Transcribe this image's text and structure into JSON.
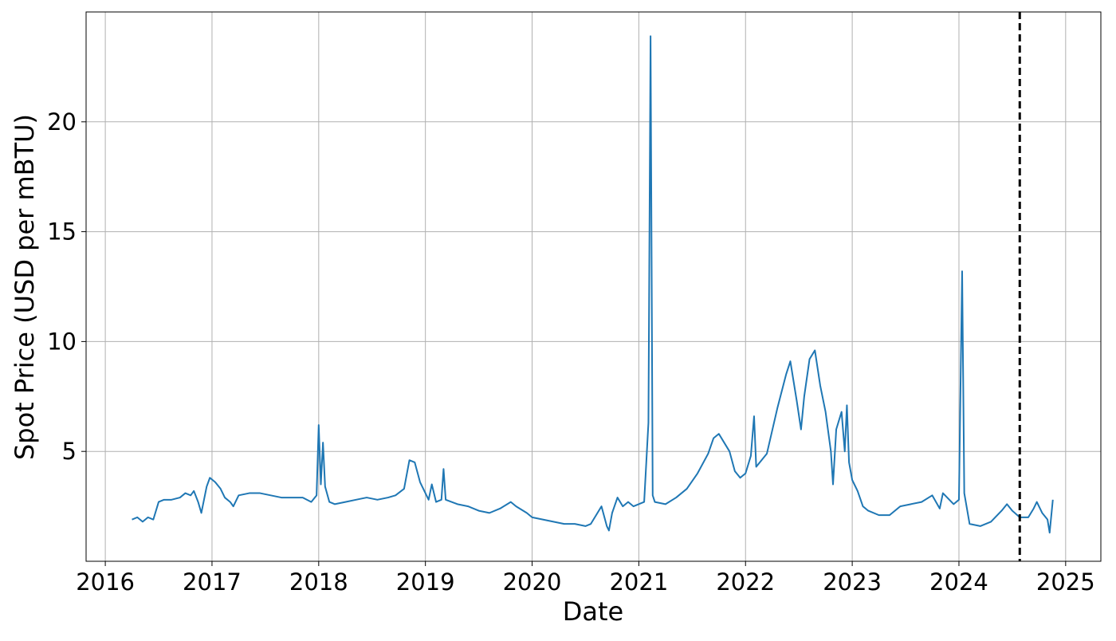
{
  "chart_data": {
    "type": "line",
    "x_label": "Date",
    "y_label": "Spot Price (USD per mBTU)",
    "xlim": [
      2015.82,
      2025.33
    ],
    "xticks": [
      2016,
      2017,
      2018,
      2019,
      2020,
      2021,
      2022,
      2023,
      2024,
      2025
    ],
    "ylim": [
      0,
      25
    ],
    "yticks": [
      5,
      10,
      15,
      20
    ],
    "grid": true,
    "vline": {
      "x": 2024.57,
      "color": "#000000",
      "style": "dashed"
    },
    "series": [
      {
        "color": "#1f77b4",
        "x": [
          2016.25,
          2016.3,
          2016.35,
          2016.4,
          2016.45,
          2016.5,
          2016.55,
          2016.62,
          2016.7,
          2016.75,
          2016.8,
          2016.83,
          2016.87,
          2016.9,
          2016.95,
          2016.98,
          2017.03,
          2017.08,
          2017.12,
          2017.17,
          2017.2,
          2017.25,
          2017.35,
          2017.45,
          2017.55,
          2017.65,
          2017.75,
          2017.85,
          2017.93,
          2017.98,
          2018.0,
          2018.02,
          2018.04,
          2018.06,
          2018.1,
          2018.15,
          2018.25,
          2018.35,
          2018.45,
          2018.55,
          2018.65,
          2018.72,
          2018.8,
          2018.85,
          2018.9,
          2018.95,
          2019.0,
          2019.03,
          2019.06,
          2019.1,
          2019.15,
          2019.17,
          2019.19,
          2019.3,
          2019.4,
          2019.5,
          2019.6,
          2019.7,
          2019.8,
          2019.85,
          2019.95,
          2020.0,
          2020.1,
          2020.2,
          2020.3,
          2020.4,
          2020.5,
          2020.55,
          2020.6,
          2020.65,
          2020.7,
          2020.72,
          2020.75,
          2020.8,
          2020.85,
          2020.9,
          2020.95,
          2021.05,
          2021.09,
          2021.11,
          2021.13,
          2021.15,
          2021.25,
          2021.35,
          2021.45,
          2021.55,
          2021.65,
          2021.7,
          2021.75,
          2021.8,
          2021.85,
          2021.9,
          2021.95,
          2022.0,
          2022.05,
          2022.08,
          2022.1,
          2022.2,
          2022.3,
          2022.38,
          2022.42,
          2022.48,
          2022.52,
          2022.55,
          2022.6,
          2022.65,
          2022.7,
          2022.75,
          2022.8,
          2022.82,
          2022.85,
          2022.9,
          2022.93,
          2022.95,
          2022.97,
          2023.0,
          2023.05,
          2023.1,
          2023.15,
          2023.25,
          2023.35,
          2023.45,
          2023.55,
          2023.65,
          2023.75,
          2023.82,
          2023.85,
          2023.95,
          2024.0,
          2024.03,
          2024.05,
          2024.1,
          2024.2,
          2024.3,
          2024.4,
          2024.45,
          2024.5,
          2024.57,
          2024.65,
          2024.7,
          2024.73,
          2024.78,
          2024.83,
          2024.85,
          2024.88
        ],
        "values": [
          1.9,
          2.0,
          1.8,
          2.0,
          1.9,
          2.7,
          2.8,
          2.8,
          2.9,
          3.1,
          3.0,
          3.2,
          2.7,
          2.2,
          3.4,
          3.8,
          3.6,
          3.3,
          2.9,
          2.7,
          2.5,
          3.0,
          3.1,
          3.1,
          3.0,
          2.9,
          2.9,
          2.9,
          2.7,
          3.0,
          6.2,
          3.5,
          5.4,
          3.4,
          2.7,
          2.6,
          2.7,
          2.8,
          2.9,
          2.8,
          2.9,
          3.0,
          3.3,
          4.6,
          4.5,
          3.6,
          3.1,
          2.8,
          3.5,
          2.7,
          2.8,
          4.2,
          2.8,
          2.6,
          2.5,
          2.3,
          2.2,
          2.4,
          2.7,
          2.5,
          2.2,
          2.0,
          1.9,
          1.8,
          1.7,
          1.7,
          1.6,
          1.7,
          2.1,
          2.5,
          1.6,
          1.4,
          2.2,
          2.9,
          2.5,
          2.7,
          2.5,
          2.7,
          6.3,
          23.9,
          3.0,
          2.7,
          2.6,
          2.9,
          3.3,
          4.0,
          4.9,
          5.6,
          5.8,
          5.4,
          5.0,
          4.1,
          3.8,
          4.0,
          4.8,
          6.6,
          4.3,
          4.9,
          7.0,
          8.5,
          9.1,
          7.3,
          6.0,
          7.5,
          9.2,
          9.6,
          8.0,
          6.8,
          5.0,
          3.5,
          6.0,
          6.8,
          5.0,
          7.1,
          4.5,
          3.7,
          3.2,
          2.5,
          2.3,
          2.1,
          2.1,
          2.5,
          2.6,
          2.7,
          3.0,
          2.4,
          3.1,
          2.6,
          2.8,
          13.2,
          3.1,
          1.7,
          1.6,
          1.8,
          2.3,
          2.6,
          2.3,
          2.0,
          2.0,
          2.4,
          2.7,
          2.2,
          1.9,
          1.3,
          2.8
        ]
      }
    ]
  }
}
